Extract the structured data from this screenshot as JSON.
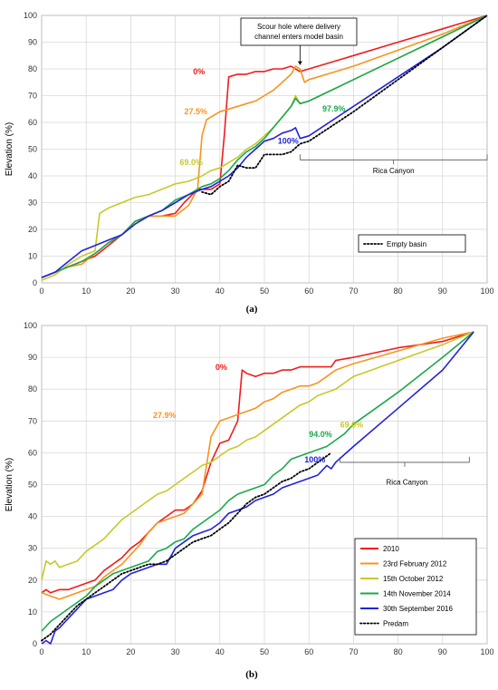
{
  "chart_data": [
    {
      "type": "line",
      "panel_label": "(a)",
      "xlabel": "",
      "ylabel": "Elevation (%)",
      "xlim": [
        0,
        100
      ],
      "ylim": [
        0,
        100
      ],
      "xticks": [
        0,
        10,
        20,
        30,
        40,
        50,
        60,
        70,
        80,
        90,
        100
      ],
      "yticks": [
        0,
        10,
        20,
        30,
        40,
        50,
        60,
        70,
        80,
        90,
        100
      ],
      "grid": true,
      "legend_position": "bottom-right",
      "legend": [
        {
          "label": "Empty basin",
          "color": "#000000",
          "style": "dotted"
        }
      ],
      "annotations": [
        {
          "text": "Scour hole  where  delivery channel enters model basin",
          "lines": [
            "Scour hole  where  delivery",
            "channel enters model basin"
          ],
          "x": 58,
          "y": 92
        },
        {
          "text": "Rica Canyon",
          "x": 79,
          "y": 41
        }
      ],
      "bracket": {
        "x_start": 58,
        "x_end": 100,
        "y": 46
      },
      "series": [
        {
          "name": "",
          "label": "0%",
          "label_x": 34,
          "label_y": 78,
          "color": "#ee1c1c",
          "x": [
            0,
            3,
            6,
            9,
            12,
            15,
            18,
            21,
            24,
            27,
            30,
            32,
            35,
            38,
            40,
            41,
            42,
            44,
            46,
            48,
            50,
            52,
            54,
            56,
            57,
            58,
            60,
            70,
            80,
            90,
            100
          ],
          "y": [
            2,
            4,
            6,
            8,
            10,
            14,
            18,
            23,
            25,
            25,
            26,
            30,
            35,
            35,
            37,
            55,
            77,
            78,
            78,
            79,
            79,
            80,
            80,
            81,
            80,
            79,
            80,
            85,
            90,
            95,
            100
          ]
        },
        {
          "name": "",
          "label": "27.5%",
          "label_x": 32,
          "label_y": 63,
          "color": "#f7941d",
          "x": [
            0,
            3,
            6,
            9,
            12,
            15,
            18,
            21,
            24,
            27,
            30,
            33,
            35,
            36,
            37,
            38,
            40,
            42,
            44,
            46,
            48,
            50,
            52,
            54,
            56,
            57,
            58,
            59,
            60,
            70,
            80,
            90,
            100
          ],
          "y": [
            2,
            4,
            6,
            7,
            11,
            15,
            18,
            23,
            25,
            25,
            25,
            29,
            35,
            55,
            61,
            62,
            64,
            65,
            66,
            67,
            68,
            70,
            72,
            75,
            78,
            81,
            80,
            75,
            76,
            81,
            87,
            93,
            100
          ]
        },
        {
          "name": "",
          "label": "69.0%",
          "label_x": 31,
          "label_y": 44,
          "color": "#c8c82a",
          "x": [
            0,
            3,
            6,
            9,
            12,
            13,
            15,
            18,
            21,
            24,
            27,
            30,
            33,
            36,
            38,
            40,
            42,
            44,
            46,
            48,
            50,
            52,
            54,
            56,
            57,
            58,
            60,
            70,
            80,
            90,
            100
          ],
          "y": [
            1,
            3,
            7,
            10,
            12,
            26,
            28,
            30,
            32,
            33,
            35,
            37,
            38,
            40,
            42,
            43,
            45,
            47,
            50,
            52,
            55,
            58,
            62,
            66,
            70,
            67,
            68,
            76,
            84,
            92,
            100
          ]
        },
        {
          "name": "",
          "label": "97.9%",
          "label_x": 63,
          "label_y": 64,
          "color": "#1aa84c",
          "x": [
            0,
            3,
            6,
            9,
            12,
            15,
            18,
            21,
            24,
            27,
            30,
            33,
            36,
            38,
            40,
            42,
            44,
            46,
            48,
            50,
            52,
            54,
            56,
            57,
            58,
            60,
            70,
            80,
            90,
            100
          ],
          "y": [
            2,
            4,
            6,
            8,
            11,
            15,
            18,
            23,
            25,
            27,
            31,
            33,
            36,
            37,
            39,
            42,
            46,
            49,
            51,
            54,
            58,
            62,
            66,
            69,
            67,
            68,
            76,
            84,
            92,
            100
          ]
        },
        {
          "name": "",
          "label": "100%",
          "label_x": 53,
          "label_y": 52,
          "color": "#2222dd",
          "x": [
            0,
            3,
            6,
            9,
            12,
            15,
            18,
            21,
            24,
            27,
            30,
            33,
            36,
            38,
            40,
            42,
            44,
            46,
            48,
            50,
            52,
            54,
            56,
            57,
            58,
            60,
            70,
            80,
            90,
            100
          ],
          "y": [
            2,
            4,
            8,
            12,
            14,
            16,
            18,
            22,
            25,
            27,
            30,
            33,
            35,
            36,
            38,
            40,
            43,
            47,
            50,
            53,
            54,
            56,
            57,
            58,
            54,
            55,
            66,
            77,
            88,
            100
          ]
        },
        {
          "name": "Empty basin",
          "color": "#000000",
          "dotted": true,
          "x": [
            36,
            38,
            40,
            42,
            44,
            46,
            48,
            50,
            52,
            54,
            56,
            58,
            60,
            70,
            80,
            90,
            100
          ],
          "y": [
            34,
            33,
            36,
            38,
            44,
            43,
            43,
            48,
            48,
            48,
            49,
            52,
            53,
            64,
            76,
            88,
            100
          ]
        }
      ]
    },
    {
      "type": "line",
      "panel_label": "(b)",
      "xlabel": "",
      "ylabel": "Elevation (%)",
      "xlim": [
        0,
        100
      ],
      "ylim": [
        0,
        100
      ],
      "xticks": [
        0,
        10,
        20,
        30,
        40,
        50,
        60,
        70,
        80,
        90,
        100
      ],
      "yticks": [
        0,
        10,
        20,
        30,
        40,
        50,
        60,
        70,
        80,
        90,
        100
      ],
      "grid": true,
      "legend_position": "bottom-right",
      "legend": [
        {
          "label": "2010",
          "color": "#ee1c1c",
          "style": "solid"
        },
        {
          "label": "23rd February 2012",
          "color": "#f7941d",
          "style": "solid"
        },
        {
          "label": "15th October 2012",
          "color": "#c8c82a",
          "style": "solid"
        },
        {
          "label": "14th November 2014",
          "color": "#1aa84c",
          "style": "solid"
        },
        {
          "label": "30th September 2016",
          "color": "#2222dd",
          "style": "solid"
        },
        {
          "label": "Predam",
          "color": "#000000",
          "style": "dotted"
        }
      ],
      "annotations": [
        {
          "text": "Rica Canyon",
          "x": 82,
          "y": 50
        }
      ],
      "bracket": {
        "x_start": 67,
        "x_end": 96,
        "y": 57
      },
      "series": [
        {
          "name": "2010",
          "label": "0%",
          "label_x": 39,
          "label_y": 86,
          "color": "#ee1c1c",
          "x": [
            0,
            1,
            2,
            4,
            6,
            8,
            10,
            12,
            14,
            16,
            18,
            20,
            22,
            24,
            26,
            28,
            30,
            32,
            34,
            36,
            38,
            40,
            42,
            44,
            45,
            46,
            48,
            50,
            52,
            54,
            56,
            58,
            60,
            62,
            64,
            65,
            66,
            70,
            80,
            90,
            97
          ],
          "y": [
            16,
            17,
            16,
            17,
            17,
            18,
            19,
            20,
            23,
            25,
            27,
            30,
            32,
            35,
            38,
            40,
            42,
            42,
            44,
            48,
            57,
            63,
            64,
            70,
            86,
            85,
            84,
            85,
            85,
            86,
            86,
            87,
            87,
            87,
            87,
            87,
            89,
            90,
            93,
            95,
            98
          ]
        },
        {
          "name": "23rd February 2012",
          "label": "27.9%",
          "label_x": 25,
          "label_y": 71,
          "color": "#f7941d",
          "x": [
            0,
            2,
            4,
            6,
            8,
            10,
            12,
            14,
            16,
            18,
            20,
            22,
            24,
            26,
            28,
            30,
            32,
            34,
            36,
            38,
            40,
            42,
            44,
            46,
            48,
            50,
            52,
            54,
            56,
            58,
            60,
            62,
            64,
            65,
            66,
            70,
            80,
            90,
            97
          ],
          "y": [
            16,
            15,
            14,
            15,
            16,
            17,
            18,
            21,
            23,
            25,
            28,
            31,
            35,
            38,
            39,
            40,
            41,
            44,
            47,
            65,
            70,
            71,
            72,
            73,
            74,
            76,
            77,
            79,
            80,
            81,
            81,
            82,
            84,
            85,
            86,
            88,
            92,
            96,
            98
          ]
        },
        {
          "name": "15th October 2012",
          "label": "69.0%",
          "label_x": 67,
          "label_y": 68,
          "color": "#c8c82a",
          "x": [
            0,
            1,
            2,
            3,
            4,
            6,
            8,
            10,
            12,
            14,
            16,
            18,
            20,
            22,
            24,
            26,
            28,
            30,
            32,
            34,
            36,
            38,
            40,
            42,
            44,
            46,
            48,
            50,
            52,
            54,
            56,
            58,
            60,
            62,
            64,
            66,
            68,
            70,
            80,
            90,
            97
          ],
          "y": [
            20,
            26,
            25,
            26,
            24,
            25,
            26,
            29,
            31,
            33,
            36,
            39,
            41,
            43,
            45,
            47,
            48,
            50,
            52,
            54,
            56,
            57,
            59,
            61,
            62,
            64,
            65,
            67,
            69,
            71,
            73,
            75,
            76,
            78,
            79,
            80,
            82,
            84,
            89,
            94,
            98
          ]
        },
        {
          "name": "14th November 2014",
          "label": "94.0%",
          "label_x": 60,
          "label_y": 65,
          "color": "#1aa84c",
          "x": [
            0,
            2,
            4,
            6,
            8,
            10,
            12,
            14,
            16,
            18,
            20,
            22,
            24,
            26,
            28,
            30,
            32,
            34,
            36,
            38,
            40,
            42,
            44,
            46,
            48,
            50,
            52,
            54,
            56,
            58,
            60,
            62,
            64,
            66,
            68,
            70,
            80,
            90,
            97
          ],
          "y": [
            4,
            7,
            9,
            11,
            13,
            15,
            18,
            20,
            22,
            23,
            24,
            25,
            26,
            29,
            30,
            32,
            33,
            36,
            38,
            40,
            42,
            45,
            47,
            48,
            49,
            50,
            53,
            55,
            58,
            59,
            60,
            61,
            62,
            64,
            66,
            69,
            79,
            90,
            98
          ]
        },
        {
          "name": "30th September 2016",
          "label": "100%",
          "label_x": 59,
          "label_y": 57,
          "color": "#2222dd",
          "x": [
            0,
            1,
            2,
            3,
            4,
            6,
            8,
            10,
            12,
            14,
            16,
            18,
            20,
            22,
            24,
            26,
            28,
            30,
            32,
            34,
            36,
            38,
            40,
            42,
            44,
            46,
            48,
            50,
            52,
            54,
            56,
            58,
            60,
            62,
            64,
            65,
            66,
            70,
            80,
            90,
            97
          ],
          "y": [
            0,
            1,
            0,
            4,
            5,
            8,
            11,
            14,
            15,
            16,
            17,
            20,
            22,
            23,
            24,
            25,
            25,
            30,
            32,
            34,
            35,
            36,
            38,
            41,
            42,
            43,
            45,
            46,
            47,
            49,
            50,
            51,
            52,
            53,
            56,
            55,
            57,
            62,
            74,
            86,
            98
          ]
        },
        {
          "name": "Predam",
          "color": "#000000",
          "dotted": true,
          "x": [
            0,
            2,
            4,
            6,
            8,
            10,
            12,
            14,
            16,
            18,
            20,
            22,
            24,
            26,
            28,
            30,
            32,
            34,
            36,
            38,
            40,
            42,
            44,
            46,
            48,
            50,
            52,
            54,
            56,
            58,
            60,
            62,
            64,
            65
          ],
          "y": [
            1,
            3,
            6,
            9,
            12,
            14,
            16,
            18,
            20,
            22,
            23,
            24,
            25,
            25,
            26,
            28,
            30,
            32,
            33,
            34,
            36,
            38,
            41,
            44,
            46,
            47,
            49,
            51,
            52,
            54,
            55,
            57,
            59,
            60
          ]
        }
      ]
    }
  ]
}
